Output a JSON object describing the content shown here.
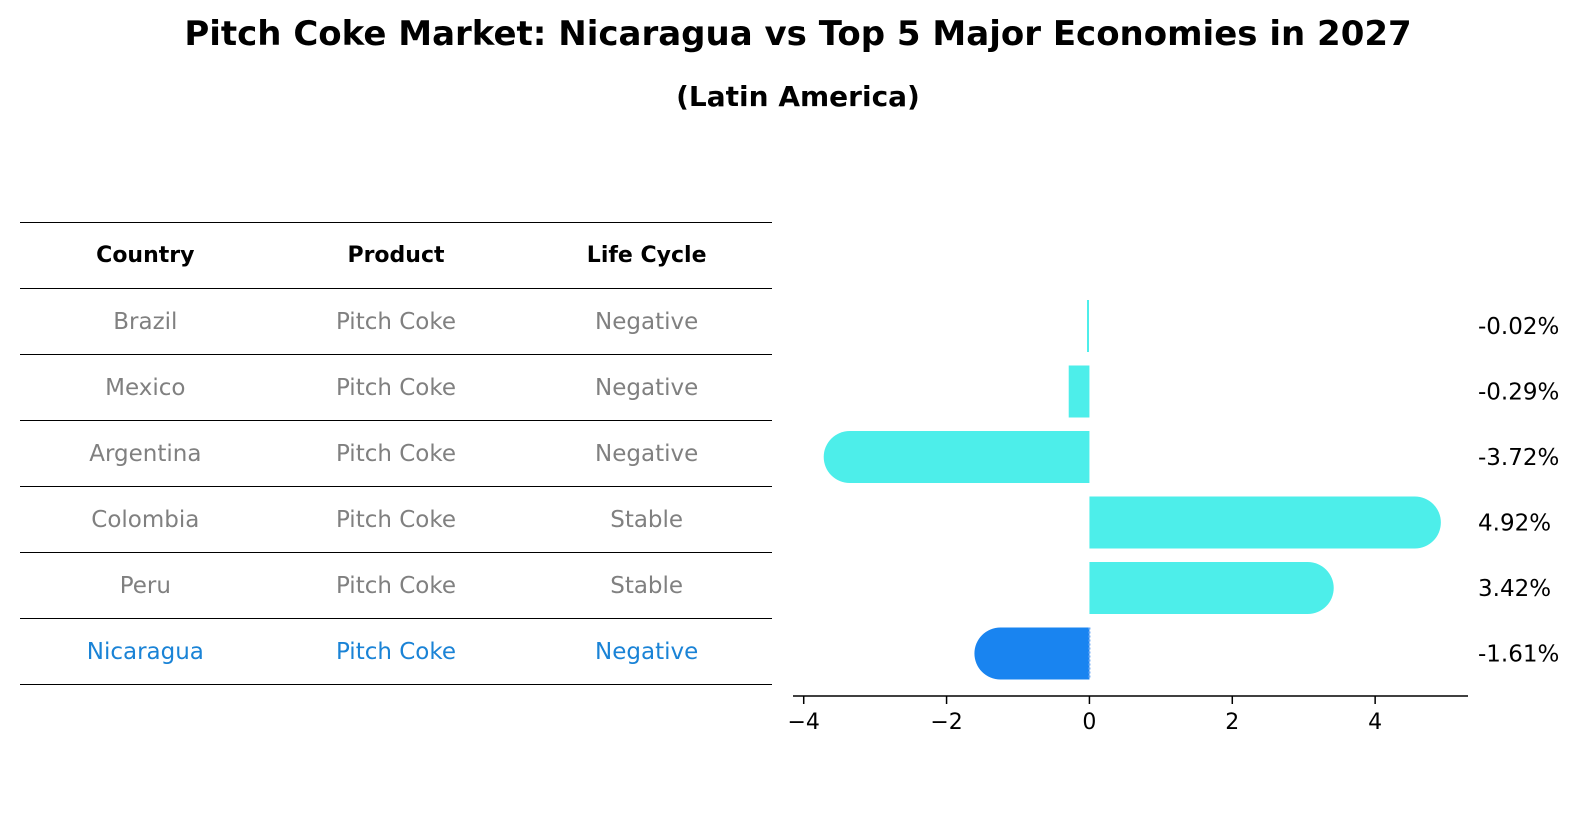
{
  "chart_data": {
    "type": "bar",
    "orientation": "horizontal",
    "title": "Pitch Coke Market: Nicaragua vs Top 5 Major Economies in 2027",
    "subtitle": "(Latin America)",
    "categories": [
      "Brazil",
      "Mexico",
      "Argentina",
      "Colombia",
      "Peru",
      "Nicaragua"
    ],
    "values": [
      -0.02,
      -0.29,
      -3.72,
      4.92,
      3.42,
      -1.61
    ],
    "value_labels": [
      "-0.02%",
      "-0.29%",
      "-3.72%",
      "4.92%",
      "3.42%",
      "-1.61%"
    ],
    "highlight_index": 5,
    "xlim": [
      -4.15,
      5.3
    ],
    "xticks": [
      -4,
      -2,
      0,
      2,
      4
    ],
    "xtick_labels": [
      "−4",
      "−2",
      "0",
      "2",
      "4"
    ],
    "colors": {
      "default_bar": "#4deeea",
      "highlight_bar": "#1984f0",
      "highlight_text": "#1a83d6",
      "muted_text": "#808080"
    }
  },
  "table": {
    "headers": [
      "Country",
      "Product",
      "Life Cycle"
    ],
    "rows": [
      [
        "Brazil",
        "Pitch Coke",
        "Negative"
      ],
      [
        "Mexico",
        "Pitch Coke",
        "Negative"
      ],
      [
        "Argentina",
        "Pitch Coke",
        "Negative"
      ],
      [
        "Colombia",
        "Pitch Coke",
        "Stable"
      ],
      [
        "Peru",
        "Pitch Coke",
        "Stable"
      ],
      [
        "Nicaragua",
        "Pitch Coke",
        "Negative"
      ]
    ]
  }
}
